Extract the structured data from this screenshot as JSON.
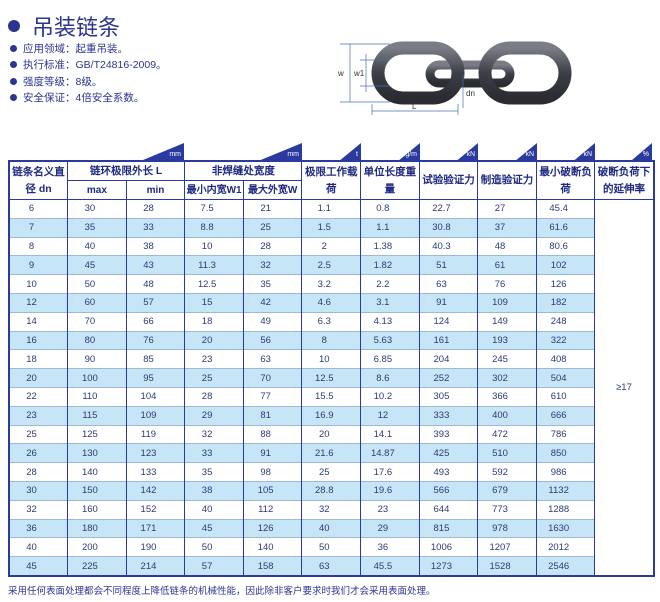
{
  "title": "吊装链条",
  "bullets": [
    "应用领域：起重吊装。",
    "执行标准：GB/T24816-2009。",
    "强度等级：8级。",
    "安全保证：4倍安全系数。"
  ],
  "diagram_labels": {
    "w": "w",
    "w1": "w1",
    "dn": "dn",
    "L": "L"
  },
  "units": [
    "mm",
    "mm",
    "t",
    "kg/m",
    "kN",
    "kN",
    "kN",
    "%"
  ],
  "header": {
    "dn": "链条名义直径 dn",
    "L": "链环极限外长 L",
    "max": "max",
    "min": "min",
    "width": "非焊缝处宽度",
    "w1": "最小内宽W1",
    "w": "最大外宽W",
    "wll": "极限工作载荷",
    "weight": "单位长度重量",
    "test": "试验验证力",
    "mfg": "制造验证力",
    "mbl": "最小破断负荷",
    "elong": "破断负荷下的延伸率"
  },
  "elongation": "≥17",
  "rows": [
    [
      "6",
      "30",
      "28",
      "7.5",
      "21",
      "1.1",
      "0.8",
      "22.7",
      "27",
      "45.4"
    ],
    [
      "7",
      "35",
      "33",
      "8.8",
      "25",
      "1.5",
      "1.1",
      "30.8",
      "37",
      "61.6"
    ],
    [
      "8",
      "40",
      "38",
      "10",
      "28",
      "2",
      "1.38",
      "40.3",
      "48",
      "80.6"
    ],
    [
      "9",
      "45",
      "43",
      "11.3",
      "32",
      "2.5",
      "1.82",
      "51",
      "61",
      "102"
    ],
    [
      "10",
      "50",
      "48",
      "12.5",
      "35",
      "3.2",
      "2.2",
      "63",
      "76",
      "126"
    ],
    [
      "12",
      "60",
      "57",
      "15",
      "42",
      "4.6",
      "3.1",
      "91",
      "109",
      "182"
    ],
    [
      "14",
      "70",
      "66",
      "18",
      "49",
      "6.3",
      "4.13",
      "124",
      "149",
      "248"
    ],
    [
      "16",
      "80",
      "76",
      "20",
      "56",
      "8",
      "5.63",
      "161",
      "193",
      "322"
    ],
    [
      "18",
      "90",
      "85",
      "23",
      "63",
      "10",
      "6.85",
      "204",
      "245",
      "408"
    ],
    [
      "20",
      "100",
      "95",
      "25",
      "70",
      "12.5",
      "8.6",
      "252",
      "302",
      "504"
    ],
    [
      "22",
      "110",
      "104",
      "28",
      "77",
      "15.5",
      "10.2",
      "305",
      "366",
      "610"
    ],
    [
      "23",
      "115",
      "109",
      "29",
      "81",
      "16.9",
      "12",
      "333",
      "400",
      "666"
    ],
    [
      "25",
      "125",
      "119",
      "32",
      "88",
      "20",
      "14.1",
      "393",
      "472",
      "786"
    ],
    [
      "26",
      "130",
      "123",
      "33",
      "91",
      "21.6",
      "14.87",
      "425",
      "510",
      "850"
    ],
    [
      "28",
      "140",
      "133",
      "35",
      "98",
      "25",
      "17.6",
      "493",
      "592",
      "986"
    ],
    [
      "30",
      "150",
      "142",
      "38",
      "105",
      "28.8",
      "19.6",
      "566",
      "679",
      "1132"
    ],
    [
      "32",
      "160",
      "152",
      "40",
      "112",
      "32",
      "23",
      "644",
      "773",
      "1288"
    ],
    [
      "36",
      "180",
      "171",
      "45",
      "126",
      "40",
      "29",
      "815",
      "978",
      "1630"
    ],
    [
      "40",
      "200",
      "190",
      "50",
      "140",
      "50",
      "36",
      "1006",
      "1207",
      "2012"
    ],
    [
      "45",
      "225",
      "214",
      "57",
      "158",
      "63",
      "45.5",
      "1273",
      "1528",
      "2546"
    ]
  ],
  "footnote": "采用任何表面处理都会不同程度上降低链条的机械性能，因此除非客户要求时我们才会采用表面处理。",
  "colors": {
    "accent": "#2b3a9e",
    "row_alt": "#c6e6f7",
    "text": "#2b3590"
  }
}
